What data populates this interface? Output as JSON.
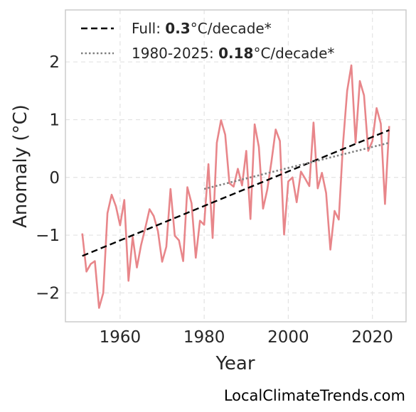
{
  "chart_data": {
    "type": "line",
    "xlabel": "Year",
    "ylabel": "Anomaly (°C)",
    "xlim": [
      1947,
      2028
    ],
    "ylim": [
      -2.5,
      2.9
    ],
    "x_ticks": [
      1960,
      1980,
      2000,
      2020
    ],
    "y_ticks": [
      -2,
      -1,
      0,
      1,
      2
    ],
    "y_tick_labels": [
      "−2",
      "−1",
      "0",
      "1",
      "2"
    ],
    "grid": true,
    "legend_position": "top-left",
    "series": [
      {
        "kind": "observed",
        "color": "#e8868a",
        "x": [
          1951,
          1952,
          1953,
          1954,
          1955,
          1956,
          1957,
          1958,
          1959,
          1960,
          1961,
          1962,
          1963,
          1964,
          1965,
          1966,
          1967,
          1968,
          1969,
          1970,
          1971,
          1972,
          1973,
          1974,
          1975,
          1976,
          1977,
          1978,
          1979,
          1980,
          1981,
          1982,
          1983,
          1984,
          1985,
          1986,
          1987,
          1988,
          1989,
          1990,
          1991,
          1992,
          1993,
          1994,
          1995,
          1996,
          1997,
          1998,
          1999,
          2000,
          2001,
          2002,
          2003,
          2004,
          2005,
          2006,
          2007,
          2008,
          2009,
          2010,
          2011,
          2012,
          2013,
          2014,
          2015,
          2016,
          2017,
          2018,
          2019,
          2020,
          2021,
          2022,
          2023,
          2024
        ],
        "y": [
          -0.97,
          -1.63,
          -1.5,
          -1.45,
          -2.26,
          -2.0,
          -0.62,
          -0.3,
          -0.5,
          -0.83,
          -0.39,
          -1.79,
          -1.03,
          -1.56,
          -1.17,
          -0.87,
          -0.55,
          -0.67,
          -0.93,
          -1.46,
          -1.2,
          -0.2,
          -1.01,
          -1.09,
          -1.45,
          -0.17,
          -0.45,
          -1.39,
          -0.75,
          -0.82,
          0.23,
          -1.05,
          0.6,
          0.99,
          0.74,
          -0.1,
          -0.16,
          0.15,
          -0.14,
          0.46,
          -0.72,
          0.92,
          0.53,
          -0.54,
          -0.21,
          0.28,
          0.83,
          0.63,
          -0.99,
          -0.07,
          0.0,
          -0.43,
          0.1,
          -0.02,
          -0.15,
          0.95,
          -0.19,
          0.08,
          -0.27,
          -1.25,
          -0.58,
          -0.73,
          0.57,
          1.5,
          1.94,
          0.6,
          1.67,
          1.42,
          0.46,
          0.63,
          1.2,
          0.93,
          -0.46,
          0.89
        ]
      },
      {
        "kind": "trend-full",
        "color": "#000000",
        "dash": "dashed",
        "legend_label": "Full: ",
        "legend_value": "0.3",
        "legend_suffix": "°C/decade*",
        "x": [
          1951,
          2024
        ],
        "y": [
          -1.36,
          0.82
        ]
      },
      {
        "kind": "trend-recent",
        "color": "#808080",
        "dash": "dotted",
        "legend_label": "1980-2025: ",
        "legend_value": "0.18",
        "legend_suffix": "°C/decade*",
        "x": [
          1980,
          2024
        ],
        "y": [
          -0.2,
          0.6
        ]
      }
    ]
  },
  "watermark": "LocalClimateTrends.com"
}
